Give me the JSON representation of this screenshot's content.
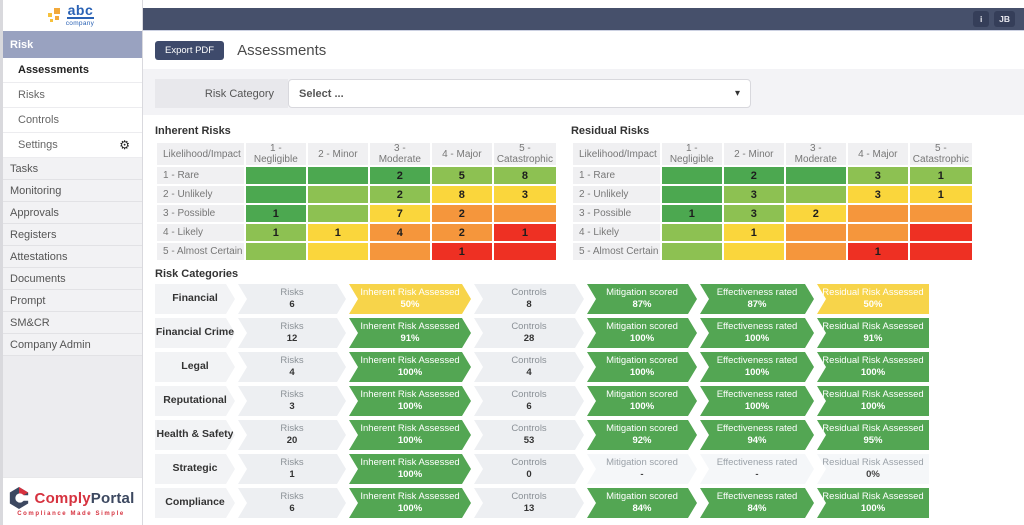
{
  "header": {
    "info_button": "i",
    "user_button": "JB"
  },
  "icons": {
    "chevron_down": "▾",
    "gear": "⚙"
  },
  "colors": {
    "topbar_navy": "#46506b",
    "button_navy": "#3e4a6b",
    "sidebar_header_lavender": "#99a2c0",
    "brand_red": "#d6323f",
    "brand_navy": "#3c4860",
    "logo_blue": "#2a62b5",
    "logo_orange": "#f2a93b"
  },
  "sidebar": {
    "logo": {
      "name": "abc",
      "sub": "company"
    },
    "section": {
      "label": "Risk",
      "items": [
        {
          "label": "Assessments",
          "active": true,
          "gear": false
        },
        {
          "label": "Risks",
          "active": false,
          "gear": false
        },
        {
          "label": "Controls",
          "active": false,
          "gear": false
        },
        {
          "label": "Settings",
          "active": false,
          "gear": true
        }
      ]
    },
    "items": [
      "Tasks",
      "Monitoring",
      "Approvals",
      "Registers",
      "Attestations",
      "Documents",
      "Prompt",
      "SM&CR",
      "Company Admin"
    ],
    "footer": {
      "brand_primary": "Comply",
      "brand_secondary": "Portal",
      "tagline": "Compliance Made Simple"
    }
  },
  "toolbar": {
    "export_label": "Export PDF",
    "page_title": "Assessments"
  },
  "filter": {
    "label": "Risk Category",
    "value": "Select ..."
  },
  "matrices": {
    "columns": [
      "Likelihood/Impact",
      "1 - Negligible",
      "2 - Minor",
      "3 - Moderate",
      "4 - Major",
      "5 - Catastrophic"
    ],
    "rows": [
      "1 - Rare",
      "2 - Unlikely",
      "3 - Possible",
      "4 - Likely",
      "5 - Almost Certain"
    ],
    "palette": {
      "g": "#4ca850",
      "lg": "#8dc152",
      "y": "#fad63c",
      "o": "#f5963c",
      "r": "#ee3023"
    },
    "color_matrix": [
      [
        "g",
        "g",
        "g",
        "lg",
        "lg"
      ],
      [
        "g",
        "lg",
        "lg",
        "y",
        "y"
      ],
      [
        "g",
        "lg",
        "y",
        "o",
        "o"
      ],
      [
        "lg",
        "y",
        "o",
        "o",
        "r"
      ],
      [
        "lg",
        "y",
        "o",
        "r",
        "r"
      ]
    ],
    "inherent": {
      "title": "Inherent Risks",
      "values": [
        [
          "",
          "",
          "2",
          "5",
          "8"
        ],
        [
          "",
          "",
          "2",
          "8",
          "3"
        ],
        [
          "1",
          "",
          "7",
          "2",
          ""
        ],
        [
          "1",
          "1",
          "4",
          "2",
          "1"
        ],
        [
          "",
          "",
          "",
          "1",
          ""
        ]
      ]
    },
    "residual": {
      "title": "Residual Risks",
      "values": [
        [
          "",
          "2",
          "",
          "3",
          "1"
        ],
        [
          "",
          "3",
          "",
          "3",
          "1"
        ],
        [
          "1",
          "3",
          "2",
          "",
          ""
        ],
        [
          "",
          "1",
          "",
          "",
          ""
        ],
        [
          "",
          "",
          "",
          "1",
          ""
        ]
      ]
    }
  },
  "risk_categories": {
    "title": "Risk Categories",
    "palette": {
      "green": "#53a653",
      "yellow": "#f7d44a",
      "gray": "#f5f7f9"
    },
    "stage_labels": {
      "risks": "Risks",
      "inherent": "Inherent Risk Assessed",
      "controls": "Controls",
      "mitigation": "Mitigation scored",
      "effectiveness": "Effectiveness rated",
      "residual": "Residual Risk Assessed"
    },
    "rows": [
      {
        "name": "Financial",
        "risks": "6",
        "inherent": {
          "value": "50%",
          "tone": "yellow"
        },
        "controls": "8",
        "mitigation": {
          "value": "87%",
          "tone": "green"
        },
        "effectiveness": {
          "value": "87%",
          "tone": "green"
        },
        "residual": {
          "value": "50%",
          "tone": "yellow"
        }
      },
      {
        "name": "Financial Crime",
        "risks": "12",
        "inherent": {
          "value": "91%",
          "tone": "green"
        },
        "controls": "28",
        "mitigation": {
          "value": "100%",
          "tone": "green"
        },
        "effectiveness": {
          "value": "100%",
          "tone": "green"
        },
        "residual": {
          "value": "91%",
          "tone": "green"
        }
      },
      {
        "name": "Legal",
        "risks": "4",
        "inherent": {
          "value": "100%",
          "tone": "green"
        },
        "controls": "4",
        "mitigation": {
          "value": "100%",
          "tone": "green"
        },
        "effectiveness": {
          "value": "100%",
          "tone": "green"
        },
        "residual": {
          "value": "100%",
          "tone": "green"
        }
      },
      {
        "name": "Reputational",
        "risks": "3",
        "inherent": {
          "value": "100%",
          "tone": "green"
        },
        "controls": "6",
        "mitigation": {
          "value": "100%",
          "tone": "green"
        },
        "effectiveness": {
          "value": "100%",
          "tone": "green"
        },
        "residual": {
          "value": "100%",
          "tone": "green"
        }
      },
      {
        "name": "Health & Safety",
        "risks": "20",
        "inherent": {
          "value": "100%",
          "tone": "green"
        },
        "controls": "53",
        "mitigation": {
          "value": "92%",
          "tone": "green"
        },
        "effectiveness": {
          "value": "94%",
          "tone": "green"
        },
        "residual": {
          "value": "95%",
          "tone": "green"
        }
      },
      {
        "name": "Strategic",
        "risks": "1",
        "inherent": {
          "value": "100%",
          "tone": "green"
        },
        "controls": "0",
        "mitigation": {
          "value": "-",
          "tone": "gray"
        },
        "effectiveness": {
          "value": "-",
          "tone": "gray"
        },
        "residual": {
          "value": "0%",
          "tone": "gray"
        }
      },
      {
        "name": "Compliance",
        "risks": "6",
        "inherent": {
          "value": "100%",
          "tone": "green"
        },
        "controls": "13",
        "mitigation": {
          "value": "84%",
          "tone": "green"
        },
        "effectiveness": {
          "value": "84%",
          "tone": "green"
        },
        "residual": {
          "value": "100%",
          "tone": "green"
        }
      }
    ]
  }
}
